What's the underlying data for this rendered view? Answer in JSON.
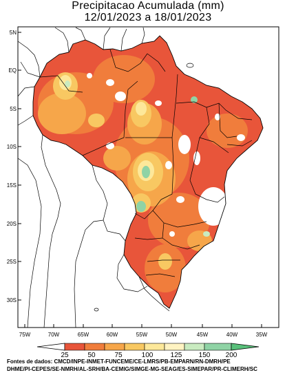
{
  "title": {
    "line1": "Precipitacao Acumulada (mm)",
    "line2": "12/01/2023 a 18/01/2023"
  },
  "axes": {
    "x_ticks": [
      "75W",
      "70W",
      "65W",
      "60W",
      "55W",
      "50W",
      "45W",
      "40W",
      "35W"
    ],
    "y_ticks": [
      "5N",
      "EQ",
      "5S",
      "10S",
      "15S",
      "20S",
      "25S",
      "30S"
    ]
  },
  "legend": {
    "labels": [
      "25",
      "50",
      "75",
      "100",
      "125",
      "150",
      "200"
    ],
    "colors": {
      "c1": "#e8553a",
      "c2": "#f07d3c",
      "c3": "#f6a64a",
      "c4": "#f8c862",
      "c5": "#fde89a",
      "c6": "#c9ebc0",
      "c7": "#8fd3a5",
      "high": "#58c07a"
    }
  },
  "footer": {
    "line1": "Fontes de dados: CMCD/INPE-INMET-FUNCEME/CE-LMRS/PB-EMPARN/RN-DMRH/PE",
    "line2": "DHME/PI-CEPES/SE-NMRH/AL-SRH/BA-CEMIG/SIMGE-MG-SEAG/ES-SIMEPAR/PR-CLIMERH/SC"
  }
}
